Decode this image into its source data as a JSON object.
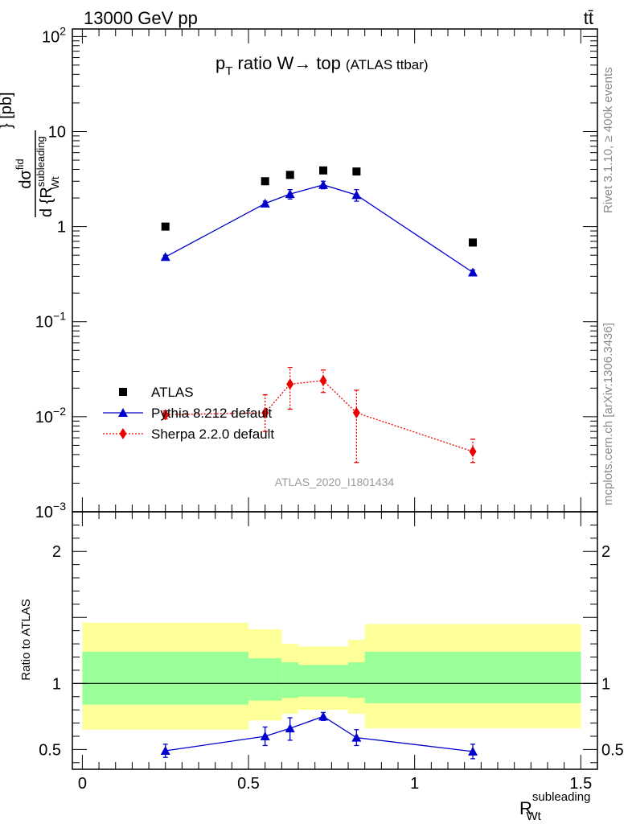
{
  "header": {
    "left": "13000 GeV pp",
    "right": "tt̄"
  },
  "side_labels": {
    "rivet": "Rivet 3.1.10, ≥ 400k events",
    "mcplots": "mcplots.cern.ch [arXiv:1306.3436]"
  },
  "analysis_id": "ATLAS_2020_I1801434",
  "colors": {
    "atlas": "#000000",
    "pythia": "#0000cc",
    "sherpa": "#ee0000",
    "band_inner": "#99ff99",
    "band_outer": "#ffff99"
  },
  "chart_data": [
    {
      "type": "scatter",
      "title": {
        "main": "p",
        "sub": "T",
        "rest": " ratio W→ top",
        "tag": "(ATLAS ttbar)"
      },
      "ylabel": {
        "numerator": "dσ",
        "numerator_sup": "fid",
        "denominator": "d {R",
        "denominator_sup": "subleading",
        "denominator_sub": "Wt",
        "tail": "} [pb]"
      },
      "yscale": "log",
      "ylim": [
        0.001,
        120
      ],
      "yticks": [
        {
          "value": 100,
          "label": "10",
          "exp": "2"
        },
        {
          "value": 10,
          "label": "10",
          "exp": ""
        },
        {
          "value": 1,
          "label": "1",
          "exp": ""
        },
        {
          "value": 0.1,
          "label": "10",
          "exp": "−1"
        },
        {
          "value": 0.01,
          "label": "10",
          "exp": "−2"
        },
        {
          "value": 0.001,
          "label": "10",
          "exp": "−3"
        }
      ],
      "xlim": [
        -0.03,
        1.55
      ],
      "legend": {
        "position": "lower-left",
        "entries": [
          "ATLAS",
          "Pythia 8.212 default",
          "Sherpa 2.2.0 default"
        ]
      },
      "series": [
        {
          "name": "ATLAS",
          "marker": "square",
          "x": [
            0.25,
            0.55,
            0.625,
            0.725,
            0.825,
            1.175
          ],
          "y": [
            1.0,
            3.0,
            3.5,
            3.9,
            3.8,
            0.68
          ]
        },
        {
          "name": "Pythia 8.212 default",
          "marker": "triangle",
          "line": "solid",
          "x": [
            0.25,
            0.55,
            0.625,
            0.725,
            0.825,
            1.175
          ],
          "y": [
            0.48,
            1.75,
            2.2,
            2.75,
            2.15,
            0.33
          ],
          "ylo": [
            0.46,
            1.65,
            1.95,
            2.5,
            1.85,
            0.31
          ],
          "yhi": [
            0.5,
            1.85,
            2.45,
            3.0,
            2.45,
            0.35
          ]
        },
        {
          "name": "Sherpa 2.2.0 default",
          "marker": "diamond",
          "line": "dotted",
          "x": [
            0.25,
            0.55,
            0.625,
            0.725,
            0.825,
            1.175
          ],
          "y": [
            0.0105,
            0.011,
            0.022,
            0.024,
            0.011,
            0.0043
          ],
          "ylo": [
            0.0095,
            0.007,
            0.012,
            0.018,
            0.0033,
            0.0033
          ],
          "yhi": [
            0.0115,
            0.017,
            0.033,
            0.031,
            0.019,
            0.0058
          ]
        }
      ]
    },
    {
      "type": "scatter",
      "ylabel": "Ratio to ATLAS",
      "xlabel": {
        "main": "R",
        "sup": "subleading",
        "sub": "Wt"
      },
      "ylim": [
        0.35,
        2.3
      ],
      "xlim": [
        -0.03,
        1.55
      ],
      "yticks": [
        0.5,
        1,
        2
      ],
      "xticks": [
        {
          "value": 0,
          "label": "0"
        },
        {
          "value": 0.5,
          "label": "0.5"
        },
        {
          "value": 1,
          "label": "1"
        },
        {
          "value": 1.5,
          "label": "1.5"
        }
      ],
      "bands": {
        "edges": [
          0,
          0.5,
          0.6,
          0.65,
          0.8,
          0.85,
          1.5
        ],
        "inner_lo": [
          0.84,
          0.87,
          0.89,
          0.9,
          0.89,
          0.85
        ],
        "inner_hi": [
          1.24,
          1.19,
          1.16,
          1.14,
          1.16,
          1.24
        ],
        "outer_lo": [
          0.65,
          0.72,
          0.77,
          0.8,
          0.77,
          0.66
        ],
        "outer_hi": [
          1.46,
          1.41,
          1.3,
          1.28,
          1.33,
          1.45
        ]
      },
      "series": [
        {
          "name": "Pythia 8.212 default",
          "marker": "triangle",
          "line": "solid",
          "x": [
            0.25,
            0.55,
            0.625,
            0.725,
            0.825,
            1.175
          ],
          "y": [
            0.49,
            0.6,
            0.66,
            0.75,
            0.59,
            0.485
          ],
          "ylo": [
            0.44,
            0.53,
            0.57,
            0.72,
            0.53,
            0.43
          ],
          "yhi": [
            0.54,
            0.67,
            0.74,
            0.78,
            0.65,
            0.54
          ]
        }
      ]
    }
  ]
}
